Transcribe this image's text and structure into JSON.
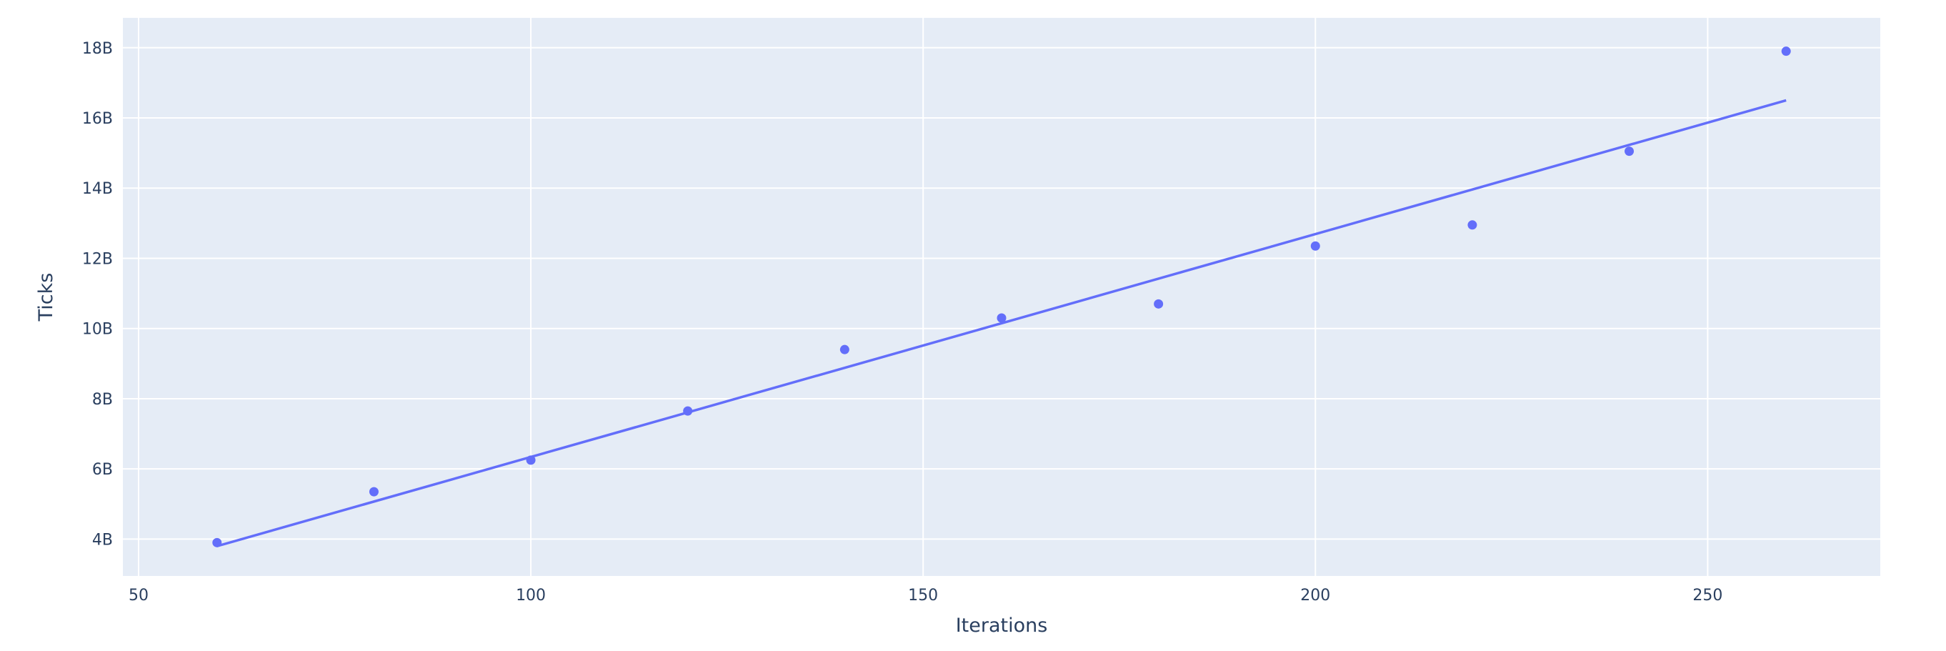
{
  "chart_data": {
    "type": "scatter",
    "title": "",
    "xlabel": "Iterations",
    "ylabel": "Ticks",
    "xlim": [
      48,
      272
    ],
    "ylim": [
      2950000000,
      18850000000
    ],
    "x_ticks": [
      {
        "value": 50,
        "label": "50"
      },
      {
        "value": 100,
        "label": "100"
      },
      {
        "value": 150,
        "label": "150"
      },
      {
        "value": 200,
        "label": "200"
      },
      {
        "value": 250,
        "label": "250"
      }
    ],
    "y_ticks": [
      {
        "value": 4000000000,
        "label": "4B"
      },
      {
        "value": 6000000000,
        "label": "6B"
      },
      {
        "value": 8000000000,
        "label": "8B"
      },
      {
        "value": 10000000000,
        "label": "10B"
      },
      {
        "value": 12000000000,
        "label": "12B"
      },
      {
        "value": 14000000000,
        "label": "14B"
      },
      {
        "value": 16000000000,
        "label": "16B"
      },
      {
        "value": 18000000000,
        "label": "18B"
      }
    ],
    "grid": true,
    "colors": {
      "plot_background": "#e5ecf6",
      "grid": "#ffffff",
      "series": "#636efa",
      "text": "#2a3f5f"
    },
    "series": [
      {
        "kind": "markers",
        "x": [
          60,
          80,
          100,
          120,
          140,
          160,
          180,
          200,
          220,
          240,
          260
        ],
        "y": [
          3900000000,
          5350000000,
          6250000000,
          7650000000,
          9400000000,
          10300000000,
          10700000000,
          12350000000,
          12950000000,
          15050000000,
          17900000000
        ]
      },
      {
        "kind": "trendline",
        "x": [
          60,
          260
        ],
        "y": [
          3800000000,
          16500000000
        ]
      }
    ]
  }
}
